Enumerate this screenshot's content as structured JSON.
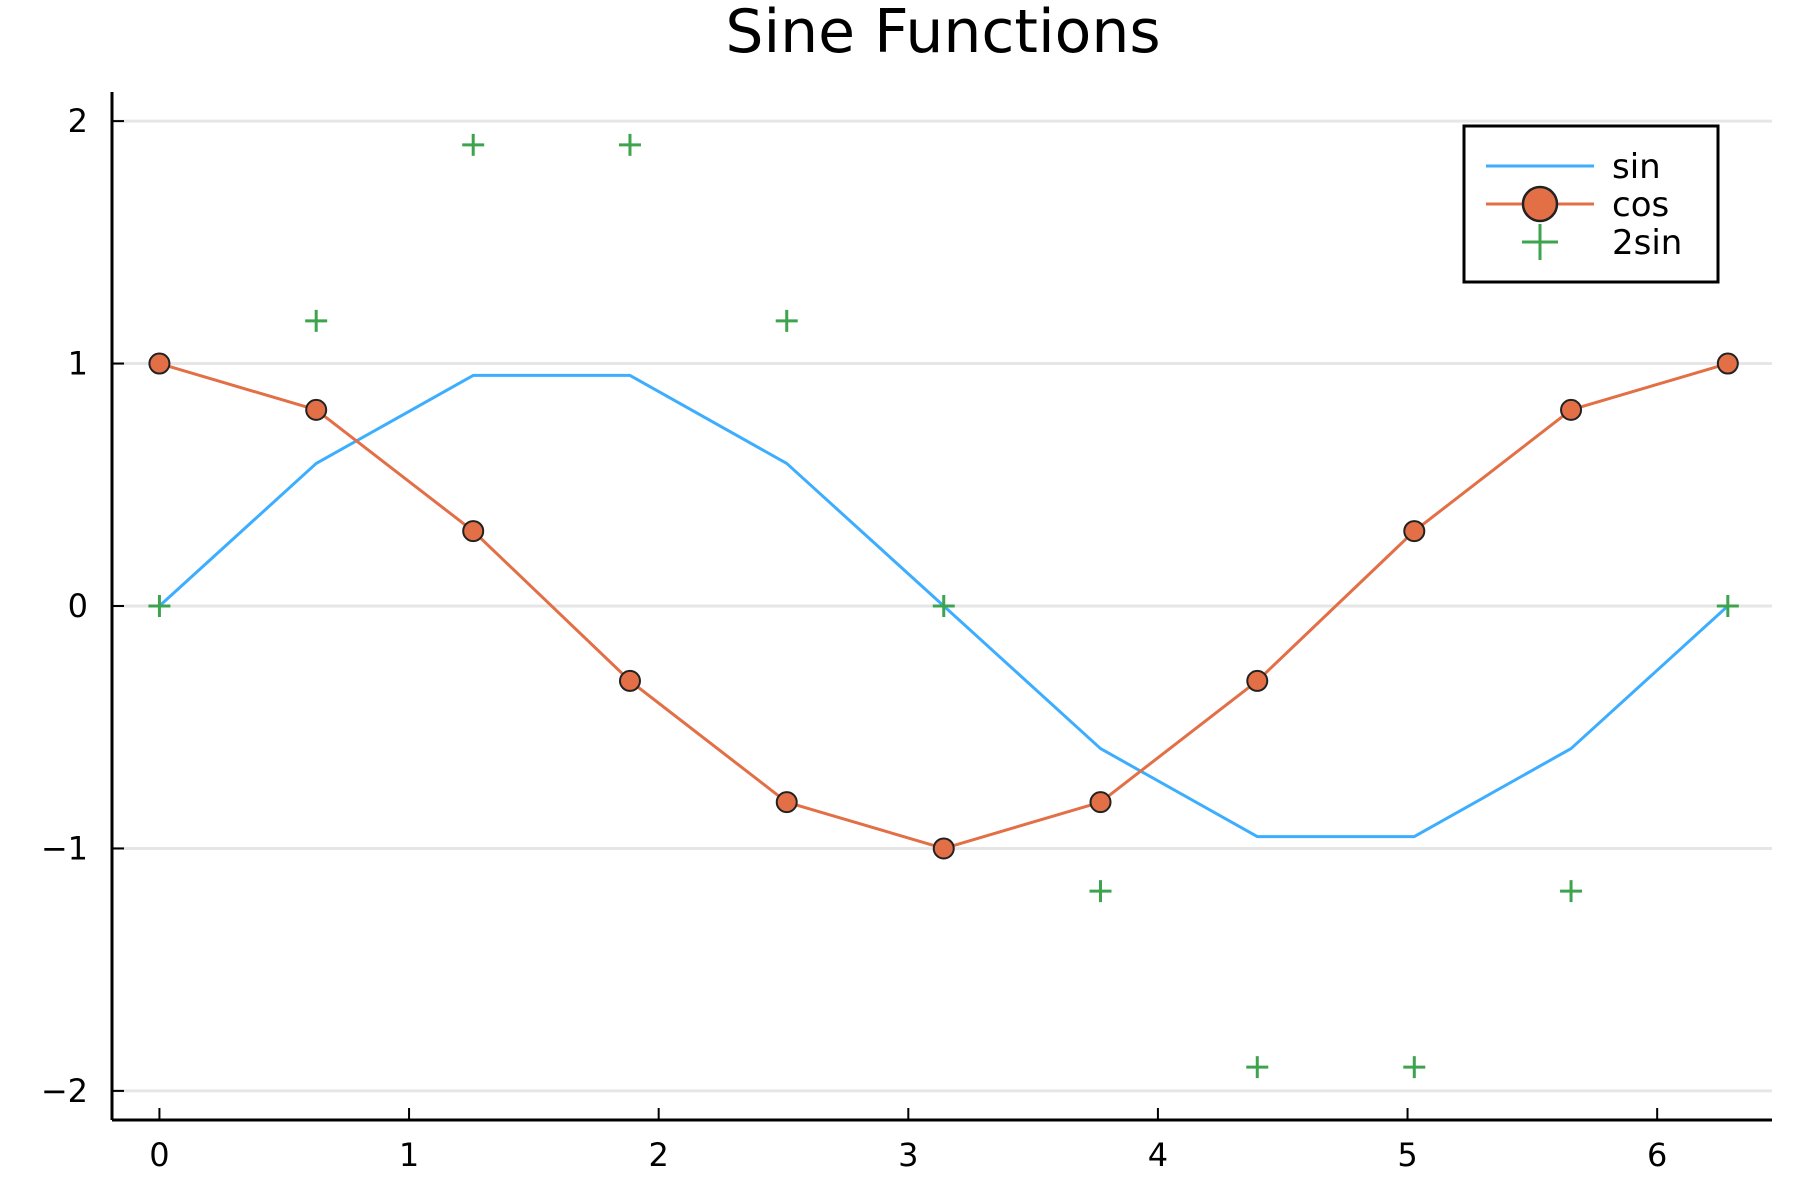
{
  "chart_data": {
    "type": "line",
    "title": "Sine Functions",
    "xlabel": "",
    "ylabel": "",
    "xlim": [
      -0.19,
      6.46
    ],
    "ylim": [
      -2.12,
      2.12
    ],
    "xticks": [
      0,
      1,
      2,
      3,
      4,
      5,
      6
    ],
    "yticks": [
      -2,
      -1,
      0,
      1,
      2
    ],
    "xtick_labels": [
      "0",
      "1",
      "2",
      "3",
      "4",
      "5",
      "6"
    ],
    "ytick_labels": [
      "−2",
      "−1",
      "0",
      "1",
      "2"
    ],
    "grid": "horizontal",
    "legend_position": "top-right",
    "x": [
      0,
      0.628,
      1.257,
      1.885,
      2.513,
      3.142,
      3.77,
      4.398,
      5.027,
      5.655,
      6.283
    ],
    "series": [
      {
        "name": "sin",
        "style": "line",
        "color": "#3daeff",
        "values": [
          0,
          0.588,
          0.951,
          0.951,
          0.588,
          0,
          -0.588,
          -0.951,
          -0.951,
          -0.588,
          0
        ]
      },
      {
        "name": "cos",
        "style": "line+marker",
        "marker": "circle",
        "color": "#e26f46",
        "values": [
          1,
          0.809,
          0.309,
          -0.309,
          -0.809,
          -1,
          -0.809,
          -0.309,
          0.309,
          0.809,
          1
        ]
      },
      {
        "name": "2sin",
        "style": "marker",
        "marker": "cross",
        "color": "#3da44d",
        "values": [
          0,
          1.176,
          1.902,
          1.902,
          1.176,
          0,
          -1.176,
          -1.902,
          -1.902,
          -1.176,
          0
        ]
      }
    ]
  }
}
